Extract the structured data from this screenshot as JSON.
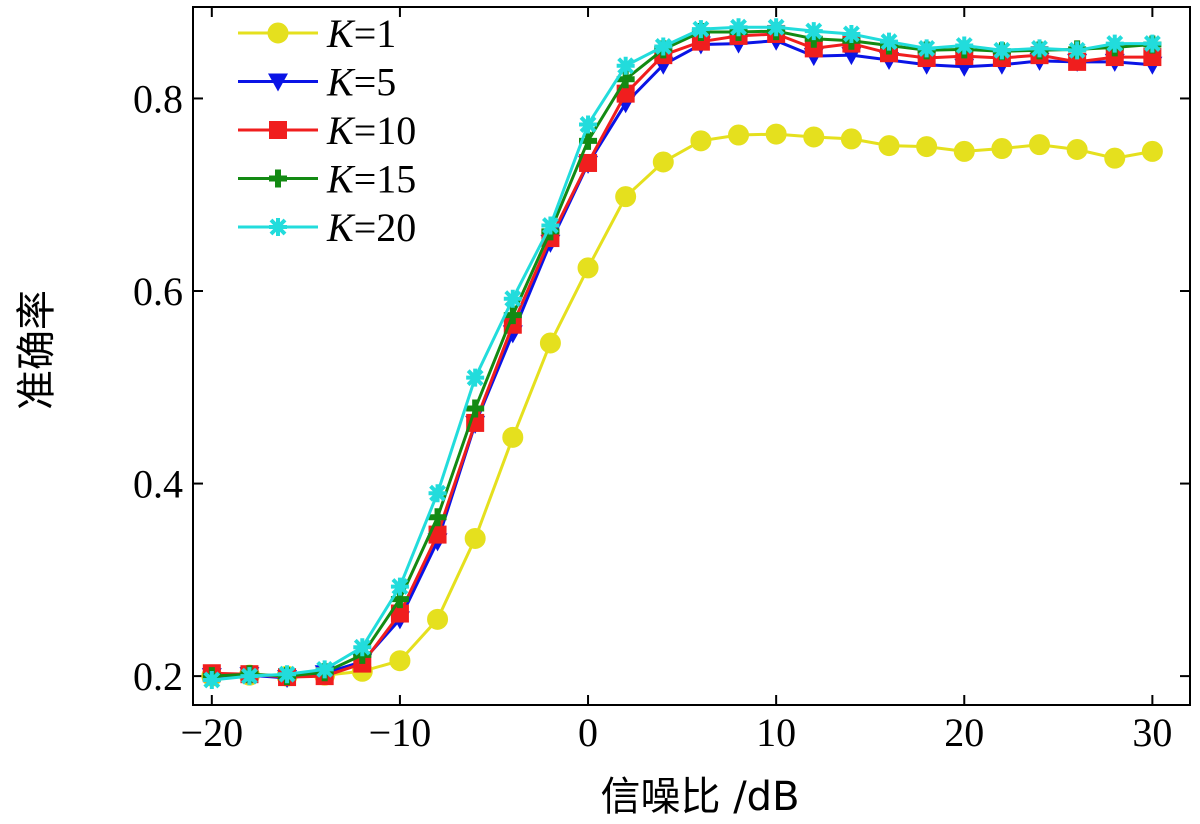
{
  "chart_data": {
    "type": "line",
    "title": "",
    "xlabel": "信噪比 /dB",
    "ylabel": "准确率",
    "xlim": [
      -21,
      32
    ],
    "ylim": [
      0.17,
      0.895
    ],
    "xticks": [
      -20,
      -10,
      0,
      10,
      20,
      30
    ],
    "xtick_labels": [
      "−20",
      "−10",
      "0",
      "10",
      "20",
      "30"
    ],
    "yticks": [
      0.2,
      0.4,
      0.6,
      0.8
    ],
    "ytick_labels": [
      "0.2",
      "0.4",
      "0.6",
      "0.8"
    ],
    "grid": false,
    "legend_position": "top-left",
    "x": [
      -20,
      -18,
      -16,
      -14,
      -12,
      -10,
      -8,
      -6,
      -4,
      -2,
      0,
      2,
      4,
      6,
      8,
      10,
      12,
      14,
      16,
      18,
      20,
      22,
      24,
      26,
      28,
      30
    ],
    "series": [
      {
        "name": "K=1",
        "name_italic": "K",
        "name_rest": "=1",
        "color": "#e5e01e",
        "marker": "circle",
        "values": [
          0.2,
          0.201,
          0.2,
          0.201,
          0.205,
          0.216,
          0.259,
          0.343,
          0.448,
          0.546,
          0.624,
          0.698,
          0.734,
          0.756,
          0.762,
          0.763,
          0.76,
          0.758,
          0.751,
          0.75,
          0.745,
          0.748,
          0.752,
          0.747,
          0.738,
          0.745
        ]
      },
      {
        "name": "K=5",
        "name_italic": "K",
        "name_rest": "=5",
        "color": "#0a14e6",
        "marker": "triangle-down",
        "values": [
          0.2,
          0.201,
          0.198,
          0.203,
          0.215,
          0.259,
          0.34,
          0.462,
          0.556,
          0.65,
          0.732,
          0.795,
          0.835,
          0.856,
          0.857,
          0.86,
          0.844,
          0.845,
          0.84,
          0.835,
          0.833,
          0.835,
          0.839,
          0.838,
          0.838,
          0.835
        ]
      },
      {
        "name": "K=10",
        "name_italic": "K",
        "name_rest": "=10",
        "color": "#f01e1e",
        "marker": "square",
        "values": [
          0.203,
          0.202,
          0.199,
          0.2,
          0.213,
          0.265,
          0.347,
          0.463,
          0.565,
          0.655,
          0.733,
          0.805,
          0.845,
          0.859,
          0.865,
          0.867,
          0.852,
          0.857,
          0.847,
          0.842,
          0.844,
          0.842,
          0.845,
          0.838,
          0.843,
          0.843
        ]
      },
      {
        "name": "K=15",
        "name_italic": "K",
        "name_rest": "=15",
        "color": "#138a13",
        "marker": "plus",
        "values": [
          0.2,
          0.202,
          0.2,
          0.204,
          0.222,
          0.28,
          0.365,
          0.478,
          0.575,
          0.662,
          0.756,
          0.82,
          0.851,
          0.869,
          0.869,
          0.87,
          0.862,
          0.86,
          0.855,
          0.85,
          0.851,
          0.849,
          0.85,
          0.851,
          0.853,
          0.856
        ]
      },
      {
        "name": "K=20",
        "name_italic": "K",
        "name_rest": "=20",
        "color": "#22dcdc",
        "marker": "asterisk",
        "values": [
          0.196,
          0.2,
          0.202,
          0.207,
          0.23,
          0.293,
          0.39,
          0.51,
          0.592,
          0.668,
          0.773,
          0.834,
          0.854,
          0.872,
          0.874,
          0.874,
          0.87,
          0.867,
          0.859,
          0.852,
          0.855,
          0.85,
          0.852,
          0.85,
          0.857,
          0.857
        ]
      }
    ]
  }
}
